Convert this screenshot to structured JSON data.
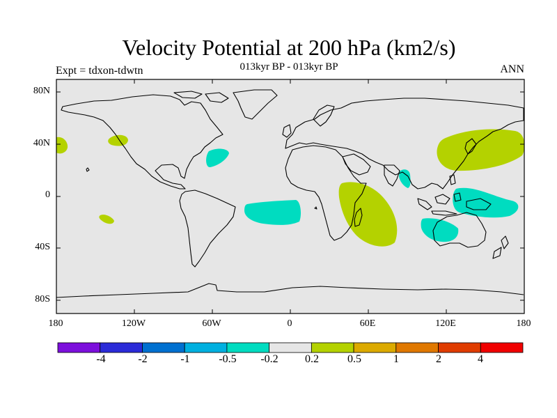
{
  "title": "Velocity Potential at 200 hPa (km2/s)",
  "subtitle": "013kyr BP - 013kyr BP",
  "expt_label": "Expt = tdxon-tdwtn",
  "season": "ANN",
  "lat_labels": [
    "80N",
    "40N",
    "0",
    "40S",
    "80S"
  ],
  "lon_labels": [
    "180",
    "120W",
    "60W",
    "0",
    "60E",
    "120E",
    "180"
  ],
  "colorbar": {
    "labels": [
      "-4",
      "-2",
      "-1",
      "-0.5",
      "-0.2",
      "0.2",
      "0.5",
      "1",
      "2",
      "4"
    ],
    "colors": [
      "#7c0fdc",
      "#2b2bd8",
      "#0070d0",
      "#00b0e0",
      "#00dcc0",
      "#e6e6e6",
      "#b4d200",
      "#dcaa00",
      "#e07800",
      "#e03c00",
      "#f00000"
    ]
  },
  "colors": {
    "land_ocean": "#e6e6e6",
    "positive_anomaly": "#b4d200",
    "negative_anomaly": "#00dcc0",
    "coastline": "#000000"
  }
}
